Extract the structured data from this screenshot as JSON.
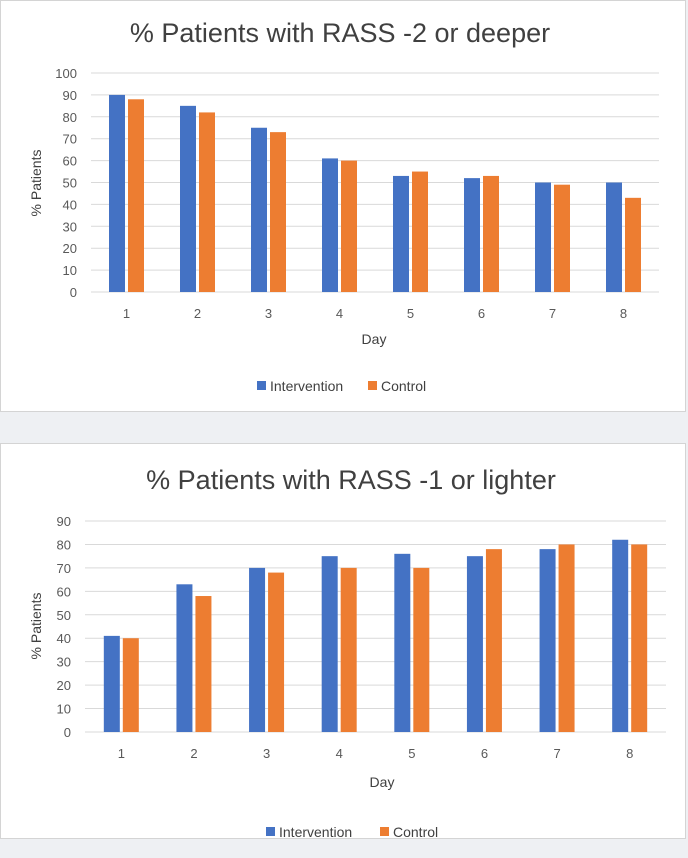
{
  "chart_data": [
    {
      "type": "bar",
      "title": "% Patients with RASS -2 or deeper",
      "xlabel": "Day",
      "ylabel": "% Patients",
      "categories": [
        "1",
        "2",
        "3",
        "4",
        "5",
        "6",
        "7",
        "8"
      ],
      "ylim": [
        0,
        100
      ],
      "yticks": [
        0,
        10,
        20,
        30,
        40,
        50,
        60,
        70,
        80,
        90,
        100
      ],
      "grid": true,
      "legend_position": "bottom",
      "series": [
        {
          "name": "Intervention",
          "color": "#4472c4",
          "values": [
            90,
            85,
            75,
            61,
            53,
            52,
            50,
            50
          ]
        },
        {
          "name": "Control",
          "color": "#ed7d31",
          "values": [
            88,
            82,
            73,
            60,
            55,
            53,
            49,
            43
          ]
        }
      ]
    },
    {
      "type": "bar",
      "title": "% Patients with RASS -1 or lighter",
      "xlabel": "Day",
      "ylabel": "% Patients",
      "categories": [
        "1",
        "2",
        "3",
        "4",
        "5",
        "6",
        "7",
        "8"
      ],
      "ylim": [
        0,
        90
      ],
      "yticks": [
        0,
        10,
        20,
        30,
        40,
        50,
        60,
        70,
        80,
        90
      ],
      "grid": true,
      "legend_position": "bottom",
      "series": [
        {
          "name": "Intervention",
          "color": "#4472c4",
          "values": [
            41,
            63,
            70,
            75,
            76,
            75,
            78,
            82
          ]
        },
        {
          "name": "Control",
          "color": "#ed7d31",
          "values": [
            40,
            58,
            68,
            70,
            70,
            78,
            80,
            80
          ]
        }
      ]
    }
  ]
}
